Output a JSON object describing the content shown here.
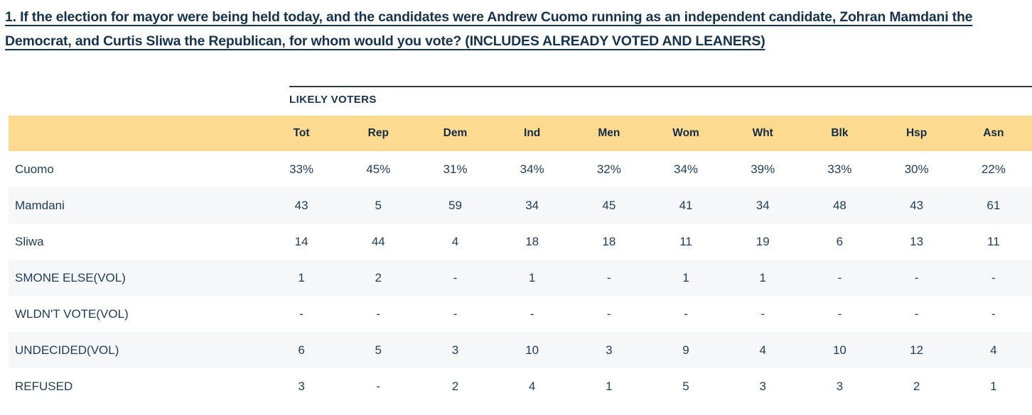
{
  "question": {
    "text": "1. If the election for mayor were being held today, and the candidates were Andrew Cuomo running as an independent candidate, Zohran Mamdani the Democrat, and Curtis Sliwa the Republican, for whom would you vote? (INCLUDES ALREADY VOTED AND LEANERS)"
  },
  "table": {
    "group_label": "LIKELY VOTERS",
    "columns": [
      "Tot",
      "Rep",
      "Dem",
      "Ind",
      "Men",
      "Wom",
      "Wht",
      "Blk",
      "Hsp",
      "Asn"
    ],
    "rows": [
      {
        "label": "Cuomo",
        "values": [
          "33%",
          "45%",
          "31%",
          "34%",
          "32%",
          "34%",
          "39%",
          "33%",
          "30%",
          "22%"
        ]
      },
      {
        "label": "Mamdani",
        "values": [
          "43",
          "5",
          "59",
          "34",
          "45",
          "41",
          "34",
          "48",
          "43",
          "61"
        ]
      },
      {
        "label": "Sliwa",
        "values": [
          "14",
          "44",
          "4",
          "18",
          "18",
          "11",
          "19",
          "6",
          "13",
          "11"
        ]
      },
      {
        "label": "SMONE ELSE(VOL)",
        "values": [
          "1",
          "2",
          "-",
          "1",
          "-",
          "1",
          "1",
          "-",
          "-",
          "-"
        ]
      },
      {
        "label": "WLDN'T VOTE(VOL)",
        "values": [
          "-",
          "-",
          "-",
          "-",
          "-",
          "-",
          "-",
          "-",
          "-",
          "-"
        ]
      },
      {
        "label": "UNDECIDED(VOL)",
        "values": [
          "6",
          "5",
          "3",
          "10",
          "3",
          "9",
          "4",
          "10",
          "12",
          "4"
        ]
      },
      {
        "label": "REFUSED",
        "values": [
          "3",
          "-",
          "2",
          "4",
          "1",
          "5",
          "3",
          "3",
          "2",
          "1"
        ]
      }
    ]
  },
  "colors": {
    "header_band": "#FCDA90",
    "row_stripe": "#F5F7F9",
    "body_text": "#1E3C5A",
    "heading_text": "#16334E",
    "rule_line": "#2E3A46"
  },
  "chart_data": {
    "type": "table",
    "title": "1. If the election for mayor were being held today, and the candidates were Andrew Cuomo running as an independent candidate, Zohran Mamdani the Democrat, and Curtis Sliwa the Republican, for whom would you vote? (INCLUDES ALREADY VOTED AND LEANERS)",
    "group_label": "LIKELY VOTERS",
    "columns": [
      "Tot",
      "Rep",
      "Dem",
      "Ind",
      "Men",
      "Wom",
      "Wht",
      "Blk",
      "Hsp",
      "Asn"
    ],
    "series": [
      {
        "name": "Cuomo",
        "values": [
          "33%",
          "45%",
          "31%",
          "34%",
          "32%",
          "34%",
          "39%",
          "33%",
          "30%",
          "22%"
        ]
      },
      {
        "name": "Mamdani",
        "values": [
          43,
          5,
          59,
          34,
          45,
          41,
          34,
          48,
          43,
          61
        ]
      },
      {
        "name": "Sliwa",
        "values": [
          14,
          44,
          4,
          18,
          18,
          11,
          19,
          6,
          13,
          11
        ]
      },
      {
        "name": "SMONE ELSE(VOL)",
        "values": [
          1,
          2,
          null,
          1,
          null,
          1,
          1,
          null,
          null,
          null
        ]
      },
      {
        "name": "WLDN'T VOTE(VOL)",
        "values": [
          null,
          null,
          null,
          null,
          null,
          null,
          null,
          null,
          null,
          null
        ]
      },
      {
        "name": "UNDECIDED(VOL)",
        "values": [
          6,
          5,
          3,
          10,
          3,
          9,
          4,
          10,
          12,
          4
        ]
      },
      {
        "name": "REFUSED",
        "values": [
          3,
          null,
          2,
          4,
          1,
          5,
          3,
          3,
          2,
          1
        ]
      }
    ]
  }
}
